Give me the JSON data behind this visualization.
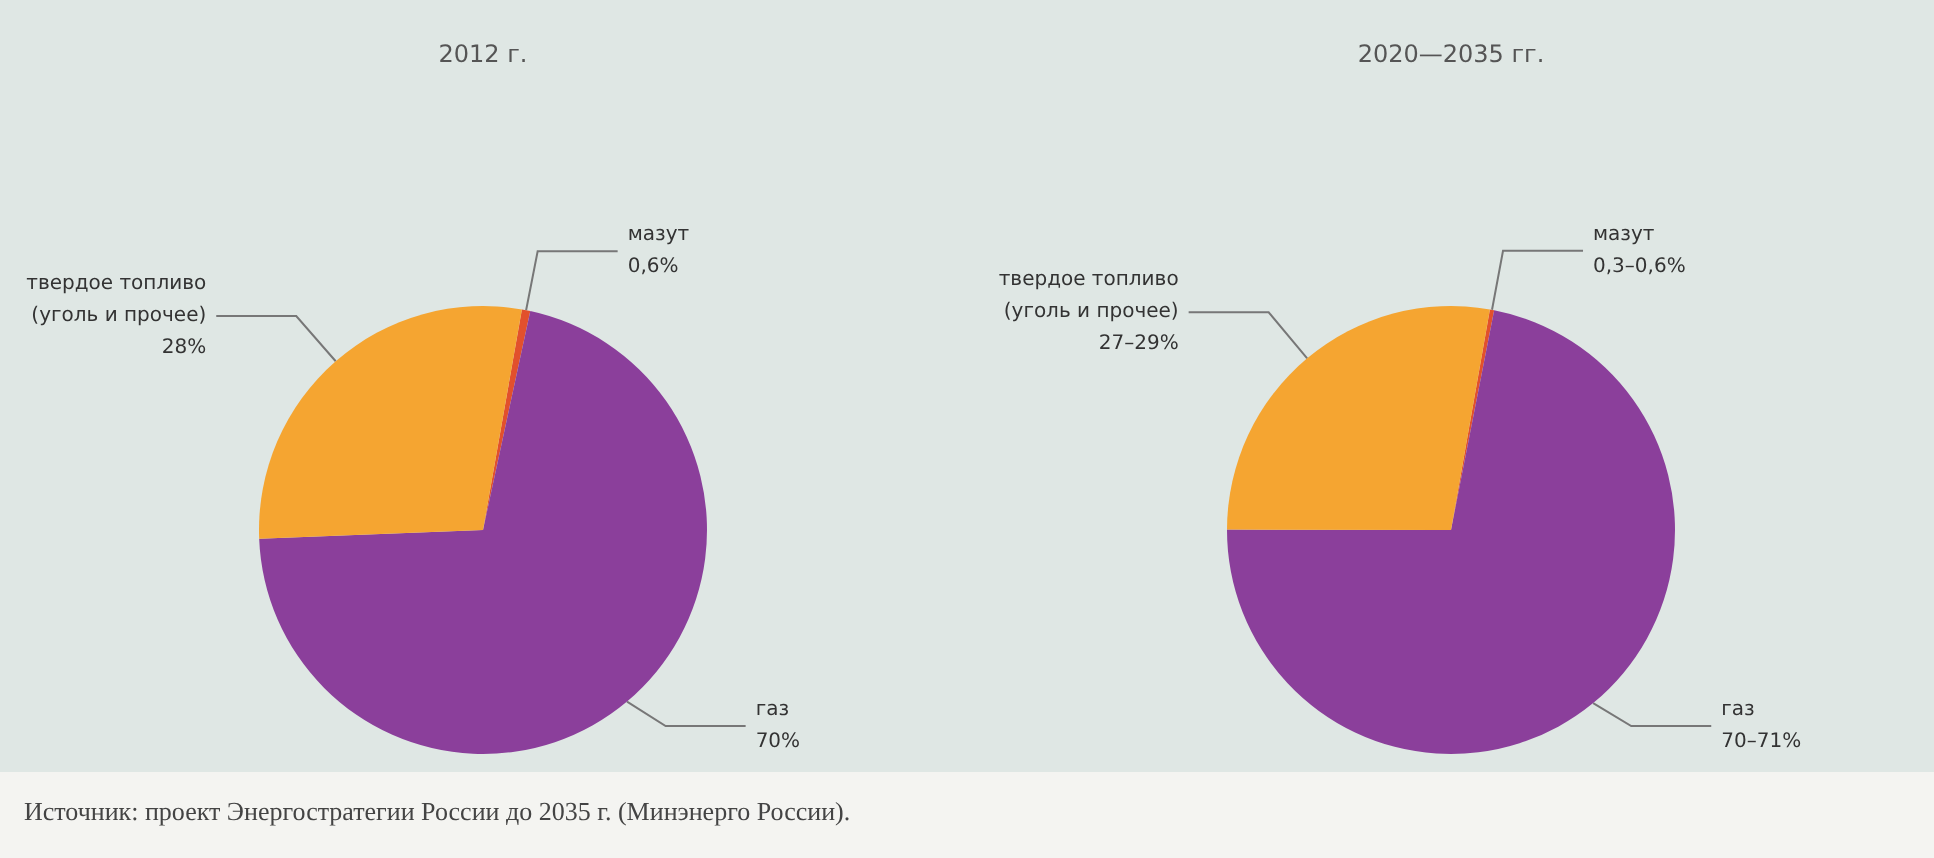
{
  "chart_data": [
    {
      "type": "pie",
      "title": "2012 г.",
      "categories": [
        "мазут",
        "газ",
        "твердое топливо\n(уголь и прочее)"
      ],
      "values": [
        0.6,
        70,
        28
      ],
      "value_labels": [
        "0,6%",
        "70%",
        "28%"
      ],
      "colors": [
        "#e2502c",
        "#8b3f9b",
        "#f5a531"
      ],
      "legend": false
    },
    {
      "type": "pie",
      "title": "2020—2035 гг.",
      "categories": [
        "мазут",
        "газ",
        "твердое топливо\n(уголь и прочее)"
      ],
      "values": [
        0.3,
        70,
        27
      ],
      "value_labels": [
        "0,3–0,6%",
        "70–71%",
        "27–29%"
      ],
      "colors": [
        "#e2502c",
        "#8b3f9b",
        "#f5a531"
      ],
      "legend": false,
      "annotations": [
        "Источник: проект Энергостратегии России до 2035 г. (Минэнерго России)."
      ]
    }
  ]
}
